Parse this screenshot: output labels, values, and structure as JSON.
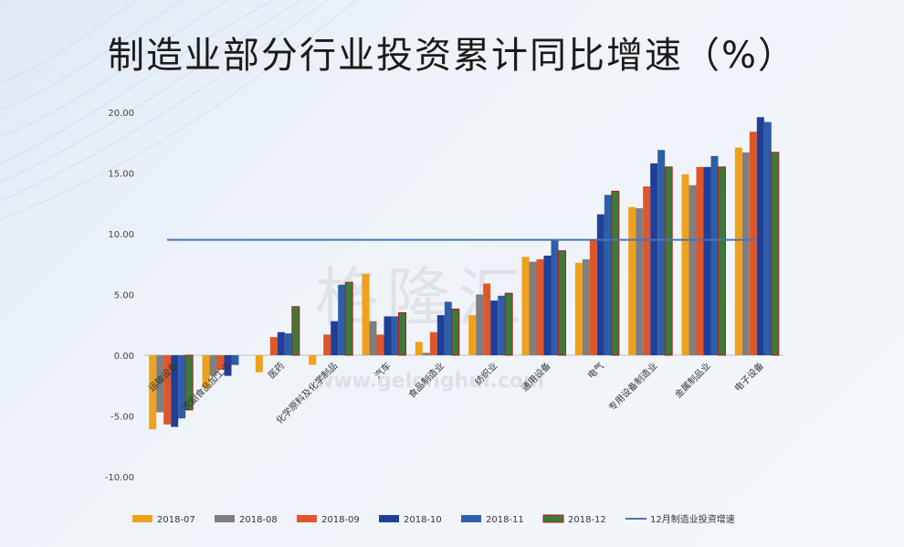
{
  "title": "制造业部分行业投资累计同比增速（%）",
  "watermark": {
    "text": "格隆汇",
    "url": "www.gelonghui.com"
  },
  "chart_data": {
    "type": "bar",
    "title": "制造业部分行业投资累计同比增速（%）",
    "categories": [
      "运输设备",
      "农副食品加工业",
      "医药",
      "化学原料及化学制品",
      "汽车",
      "食品制造业",
      "纺织业",
      "通用设备",
      "电气",
      "专用设备制造业",
      "金属制品业",
      "电子设备"
    ],
    "ylim": [
      -10,
      20
    ],
    "yticks": [
      "20.00",
      "15.00",
      "10.00",
      "5.00",
      "0.00",
      "-5.00",
      "-10.00"
    ],
    "series": [
      {
        "name": "2018-07",
        "color": "#f0a11b",
        "values": [
          -6.1,
          -2.7,
          -1.4,
          -0.8,
          6.7,
          1.1,
          3.3,
          8.1,
          7.6,
          12.2,
          14.9,
          17.1
        ]
      },
      {
        "name": "2018-08",
        "color": "#7f7f7f",
        "values": [
          -4.7,
          -1.7,
          0.0,
          0.0,
          2.8,
          0.2,
          5.0,
          7.7,
          7.9,
          12.1,
          14.0,
          16.7
        ]
      },
      {
        "name": "2018-09",
        "color": "#e0562a",
        "values": [
          -5.7,
          -1.2,
          1.5,
          1.7,
          1.7,
          1.9,
          5.9,
          7.9,
          9.5,
          13.9,
          15.5,
          18.4
        ]
      },
      {
        "name": "2018-10",
        "color": "#1f3f99",
        "values": [
          -5.9,
          -1.7,
          1.9,
          2.8,
          3.2,
          3.3,
          4.5,
          8.2,
          11.6,
          15.8,
          15.5,
          19.6
        ]
      },
      {
        "name": "2018-11",
        "color": "#2e5ea8",
        "values": [
          -5.2,
          -0.8,
          1.8,
          5.8,
          3.2,
          4.4,
          4.9,
          9.5,
          13.2,
          16.9,
          16.4,
          19.2
        ]
      },
      {
        "name": "2018-12",
        "color": "#3d7a3a",
        "edge": "#b01c1c",
        "values": [
          -4.5,
          0.0,
          4.0,
          6.0,
          3.5,
          3.8,
          5.1,
          8.6,
          13.5,
          15.5,
          15.5,
          16.7
        ]
      }
    ],
    "reference_line": {
      "name": "12月制造业投资增速",
      "value": 9.5,
      "color": "#4a72b8"
    }
  }
}
